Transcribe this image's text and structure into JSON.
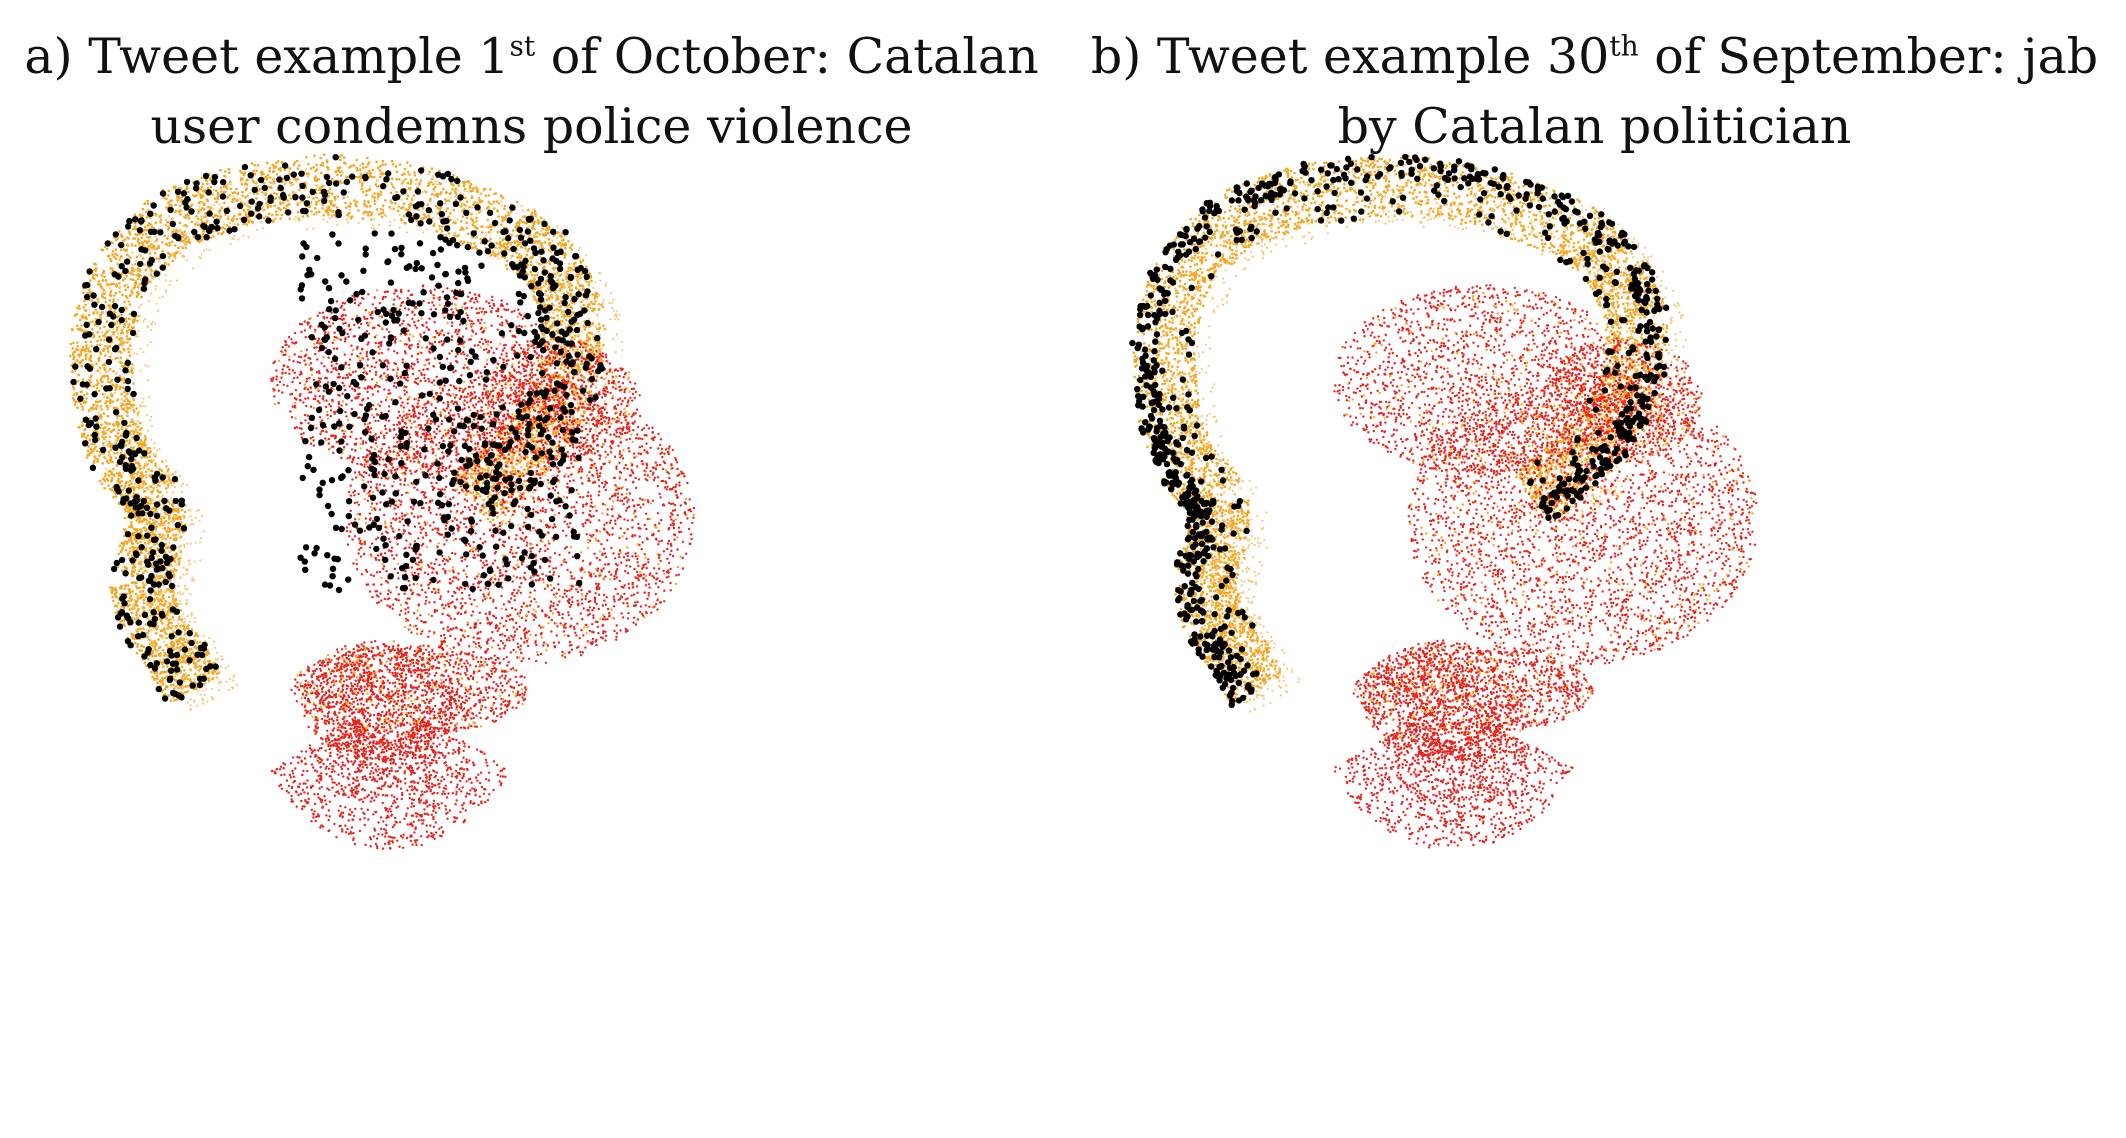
{
  "figure": {
    "panels": [
      {
        "title_prefix": "a) Tweet example 1",
        "title_sup": "st",
        "title_suffix": " of October: Catalan",
        "title_line2": "user condemns police violence"
      },
      {
        "title_prefix": "b) Tweet example 30",
        "title_sup": "th",
        "title_suffix": " of September: jab",
        "title_line2": "by Catalan politician"
      }
    ]
  },
  "chart_data": [
    {
      "type": "scatter",
      "title": "a) Tweet example 1st of October: Catalan user condemns police violence",
      "xlabel": "",
      "ylabel": "",
      "grid": false,
      "axes_visible": false,
      "colors": {
        "background_low": "#e8231e",
        "background_high": "#f5a623",
        "highlight": "#000000"
      },
      "highlight_distribution": "left arm and upper-center region of embedding"
    },
    {
      "type": "scatter",
      "title": "b) Tweet example 30th of September: jab by Catalan politician",
      "xlabel": "",
      "ylabel": "",
      "grid": false,
      "axes_visible": false,
      "colors": {
        "background_low": "#e8231e",
        "background_high": "#f5a623",
        "highlight": "#000000"
      },
      "highlight_distribution": "outer rim of left arm and top arc of embedding"
    }
  ]
}
